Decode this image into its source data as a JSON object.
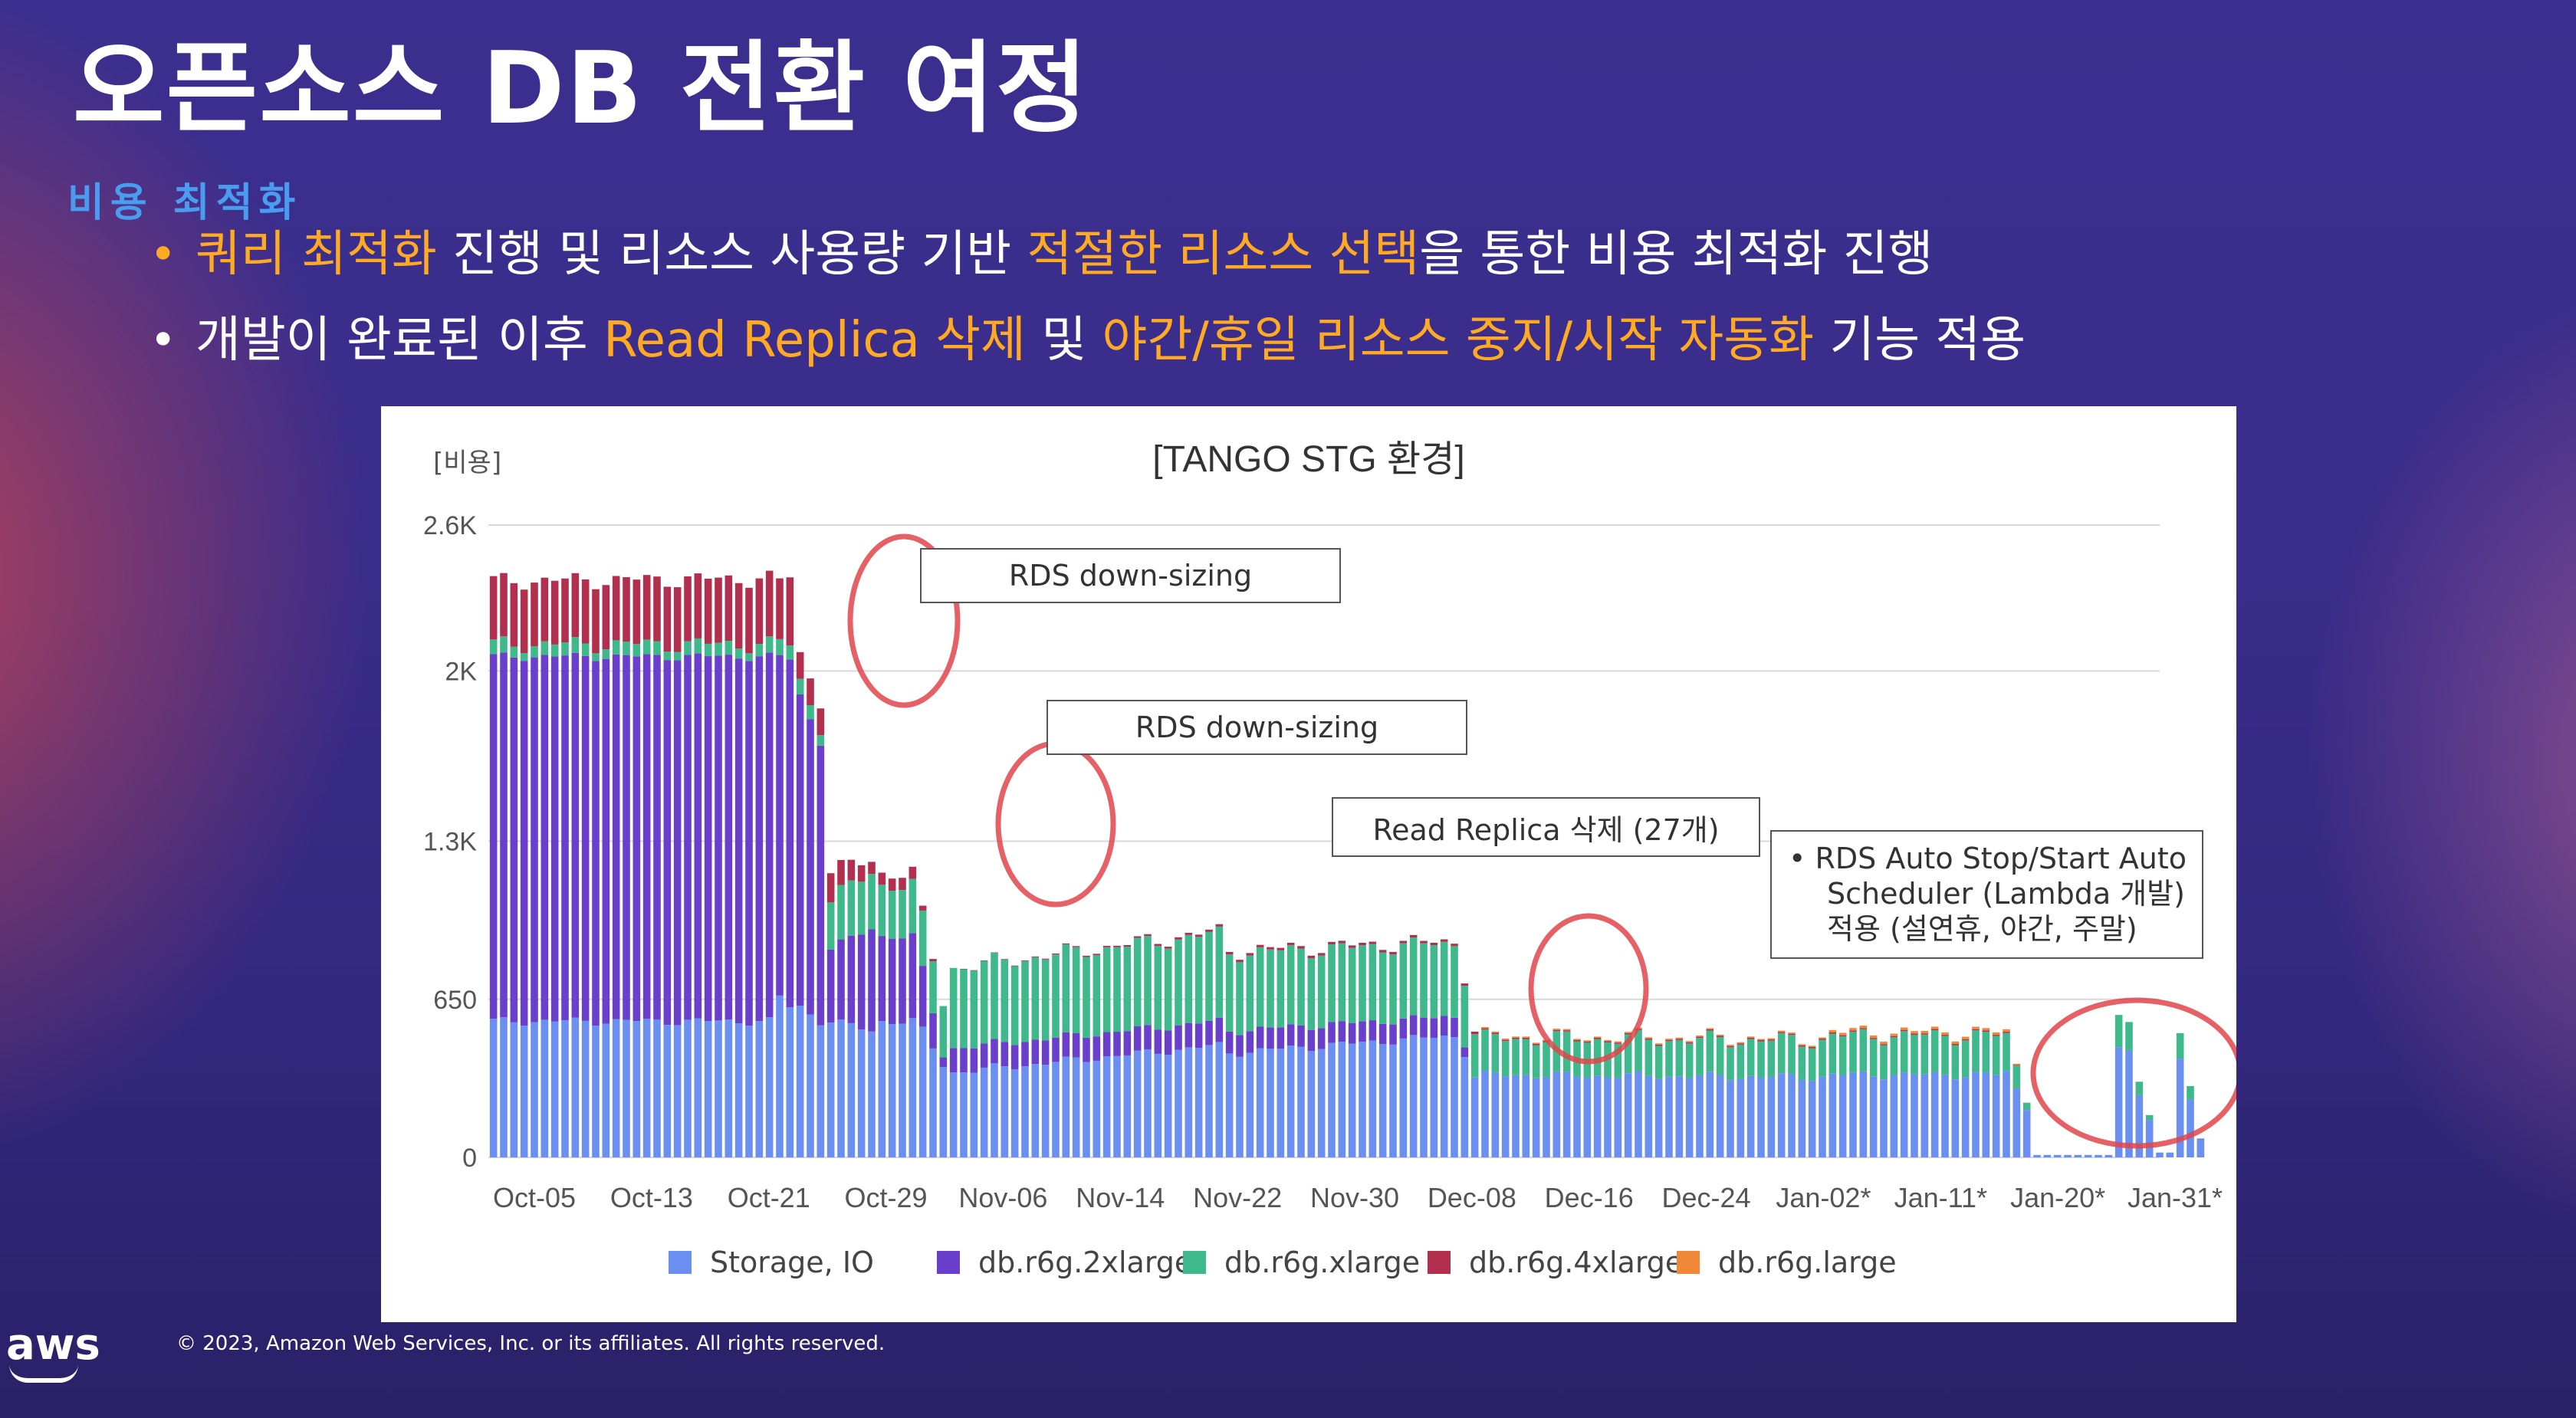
{
  "slide": {
    "title": "오픈소스 DB 전환 여정",
    "section": "비용 최적화",
    "bullets": [
      {
        "parts": [
          {
            "text": "쿼리 최적화",
            "highlight": true
          },
          {
            "text": " 진행 및 리소스 사용량 기반 ",
            "highlight": false
          },
          {
            "text": "적절한 리소스 선택",
            "highlight": true
          },
          {
            "text": "을 통한 비용 최적화 진행",
            "highlight": false
          }
        ],
        "dot_color": "#ffaa22"
      },
      {
        "parts": [
          {
            "text": "개발이 완료된 이후 ",
            "highlight": false
          },
          {
            "text": "Read Replica 삭제",
            "highlight": true
          },
          {
            "text": " 및 ",
            "highlight": false
          },
          {
            "text": "야간/휴일 리소스 중지/시작 자동화",
            "highlight": true
          },
          {
            "text": " 기능 적용",
            "highlight": false
          }
        ],
        "dot_color": "#ffffff"
      }
    ],
    "footer": {
      "logo": "aws",
      "copyright": "© 2023, Amazon Web Services, Inc. or its affiliates. All rights reserved."
    },
    "colors": {
      "highlight": "#ffaa22",
      "section": "#4a9cf0"
    }
  },
  "chart_data": {
    "type": "bar",
    "stacked": true,
    "title": "[TANGO STG 환경]",
    "ylabel": "[비용]",
    "ylim": [
      0,
      2600
    ],
    "yticks": [
      0,
      650,
      1300,
      2000,
      2600
    ],
    "ytick_labels": [
      "0",
      "650",
      "1.3K",
      "2K",
      "2.6K"
    ],
    "xtick_labels": [
      "Oct-05",
      "Oct-13",
      "Oct-21",
      "Oct-29",
      "Nov-06",
      "Nov-14",
      "Nov-22",
      "Nov-30",
      "Dec-08",
      "Dec-16",
      "Dec-24",
      "Jan-02*",
      "Jan-11*",
      "Jan-20*",
      "Jan-31*"
    ],
    "grid": true,
    "legend_position": "bottom",
    "series_meta": [
      {
        "name": "Storage, IO",
        "color": "#6b8ff0"
      },
      {
        "name": "db.r6g.2xlarge",
        "color": "#6a3fcc"
      },
      {
        "name": "db.r6g.xlarge",
        "color": "#3fb88c"
      },
      {
        "name": "db.r6g.4xlarge",
        "color": "#b22f4e"
      },
      {
        "name": "db.r6g.large",
        "color": "#f0883a"
      }
    ],
    "annotations": [
      {
        "text": "RDS down-sizing"
      },
      {
        "text": "RDS down-sizing"
      },
      {
        "text": "Read Replica 삭제 (27개)"
      },
      {
        "lines": [
          "• RDS Auto Stop/Start Auto",
          "Scheduler (Lambda 개발)",
          "적용 (설연휴, 야간, 주말)"
        ]
      }
    ],
    "segments": [
      {
        "n": 28,
        "from": [
          560,
          1500,
          50,
          260,
          0
        ],
        "to": [
          560,
          1500,
          50,
          270,
          0
        ]
      },
      {
        "n": 2,
        "from": [
          660,
          1400,
          60,
          250,
          0
        ],
        "to": [
          620,
          1430,
          60,
          280,
          0
        ]
      },
      {
        "n": 3,
        "from": [
          620,
          1280,
          60,
          110,
          0
        ],
        "to": [
          560,
          1150,
          60,
          110,
          0
        ]
      },
      {
        "n": 5,
        "from": [
          560,
          300,
          200,
          120,
          0
        ],
        "to": [
          520,
          420,
          230,
          50,
          0
        ]
      },
      {
        "n": 4,
        "from": [
          560,
          350,
          210,
          50,
          0
        ],
        "to": [
          560,
          350,
          210,
          50,
          0
        ]
      },
      {
        "n": 3,
        "from": [
          520,
          250,
          210,
          20,
          0
        ],
        "to": [
          380,
          40,
          220,
          0,
          0
        ]
      },
      {
        "n": 27,
        "from": [
          350,
          100,
          330,
          0,
          0
        ],
        "to": [
          460,
          100,
          360,
          10,
          0
        ]
      },
      {
        "n": 23,
        "from": [
          430,
          90,
          320,
          10,
          0
        ],
        "to": [
          500,
          80,
          300,
          10,
          0
        ]
      },
      {
        "n": 2,
        "from": [
          430,
          40,
          270,
          10,
          0
        ],
        "to": [
          330,
          0,
          180,
          10,
          0
        ]
      },
      {
        "n": 34,
        "from": [
          340,
          0,
          150,
          5,
          5
        ],
        "to": [
          330,
          0,
          150,
          5,
          5
        ]
      },
      {
        "n": 17,
        "from": [
          340,
          0,
          160,
          5,
          10
        ],
        "to": [
          340,
          0,
          160,
          5,
          10
        ]
      },
      {
        "n": 3,
        "from": [
          350,
          0,
          150,
          5,
          10
        ],
        "to": [
          210,
          0,
          30,
          0,
          0
        ]
      },
      {
        "n": 8,
        "from": [
          10,
          0,
          0,
          0,
          0
        ],
        "to": [
          10,
          0,
          0,
          0,
          0
        ]
      },
      {
        "n": 1,
        "from": [
          450,
          0,
          130,
          0,
          0
        ],
        "to": [
          450,
          0,
          130,
          0,
          0
        ]
      },
      {
        "n": 1,
        "from": [
          420,
          0,
          100,
          0,
          0
        ],
        "to": [
          420,
          0,
          100,
          0,
          0
        ]
      },
      {
        "n": 1,
        "from": [
          250,
          0,
          50,
          0,
          0
        ],
        "to": [
          250,
          0,
          50,
          0,
          0
        ]
      },
      {
        "n": 1,
        "from": [
          160,
          0,
          20,
          0,
          0
        ],
        "to": [
          160,
          0,
          20,
          0,
          0
        ]
      },
      {
        "n": 2,
        "from": [
          20,
          0,
          0,
          0,
          0
        ],
        "to": [
          20,
          0,
          0,
          0,
          0
        ]
      },
      {
        "n": 1,
        "from": [
          420,
          0,
          120,
          0,
          0
        ],
        "to": [
          420,
          0,
          120,
          0,
          0
        ]
      },
      {
        "n": 1,
        "from": [
          240,
          0,
          60,
          0,
          0
        ],
        "to": [
          240,
          0,
          60,
          0,
          0
        ]
      },
      {
        "n": 1,
        "from": [
          60,
          0,
          0,
          0,
          0
        ],
        "to": [
          60,
          0,
          0,
          0,
          0
        ]
      }
    ]
  }
}
